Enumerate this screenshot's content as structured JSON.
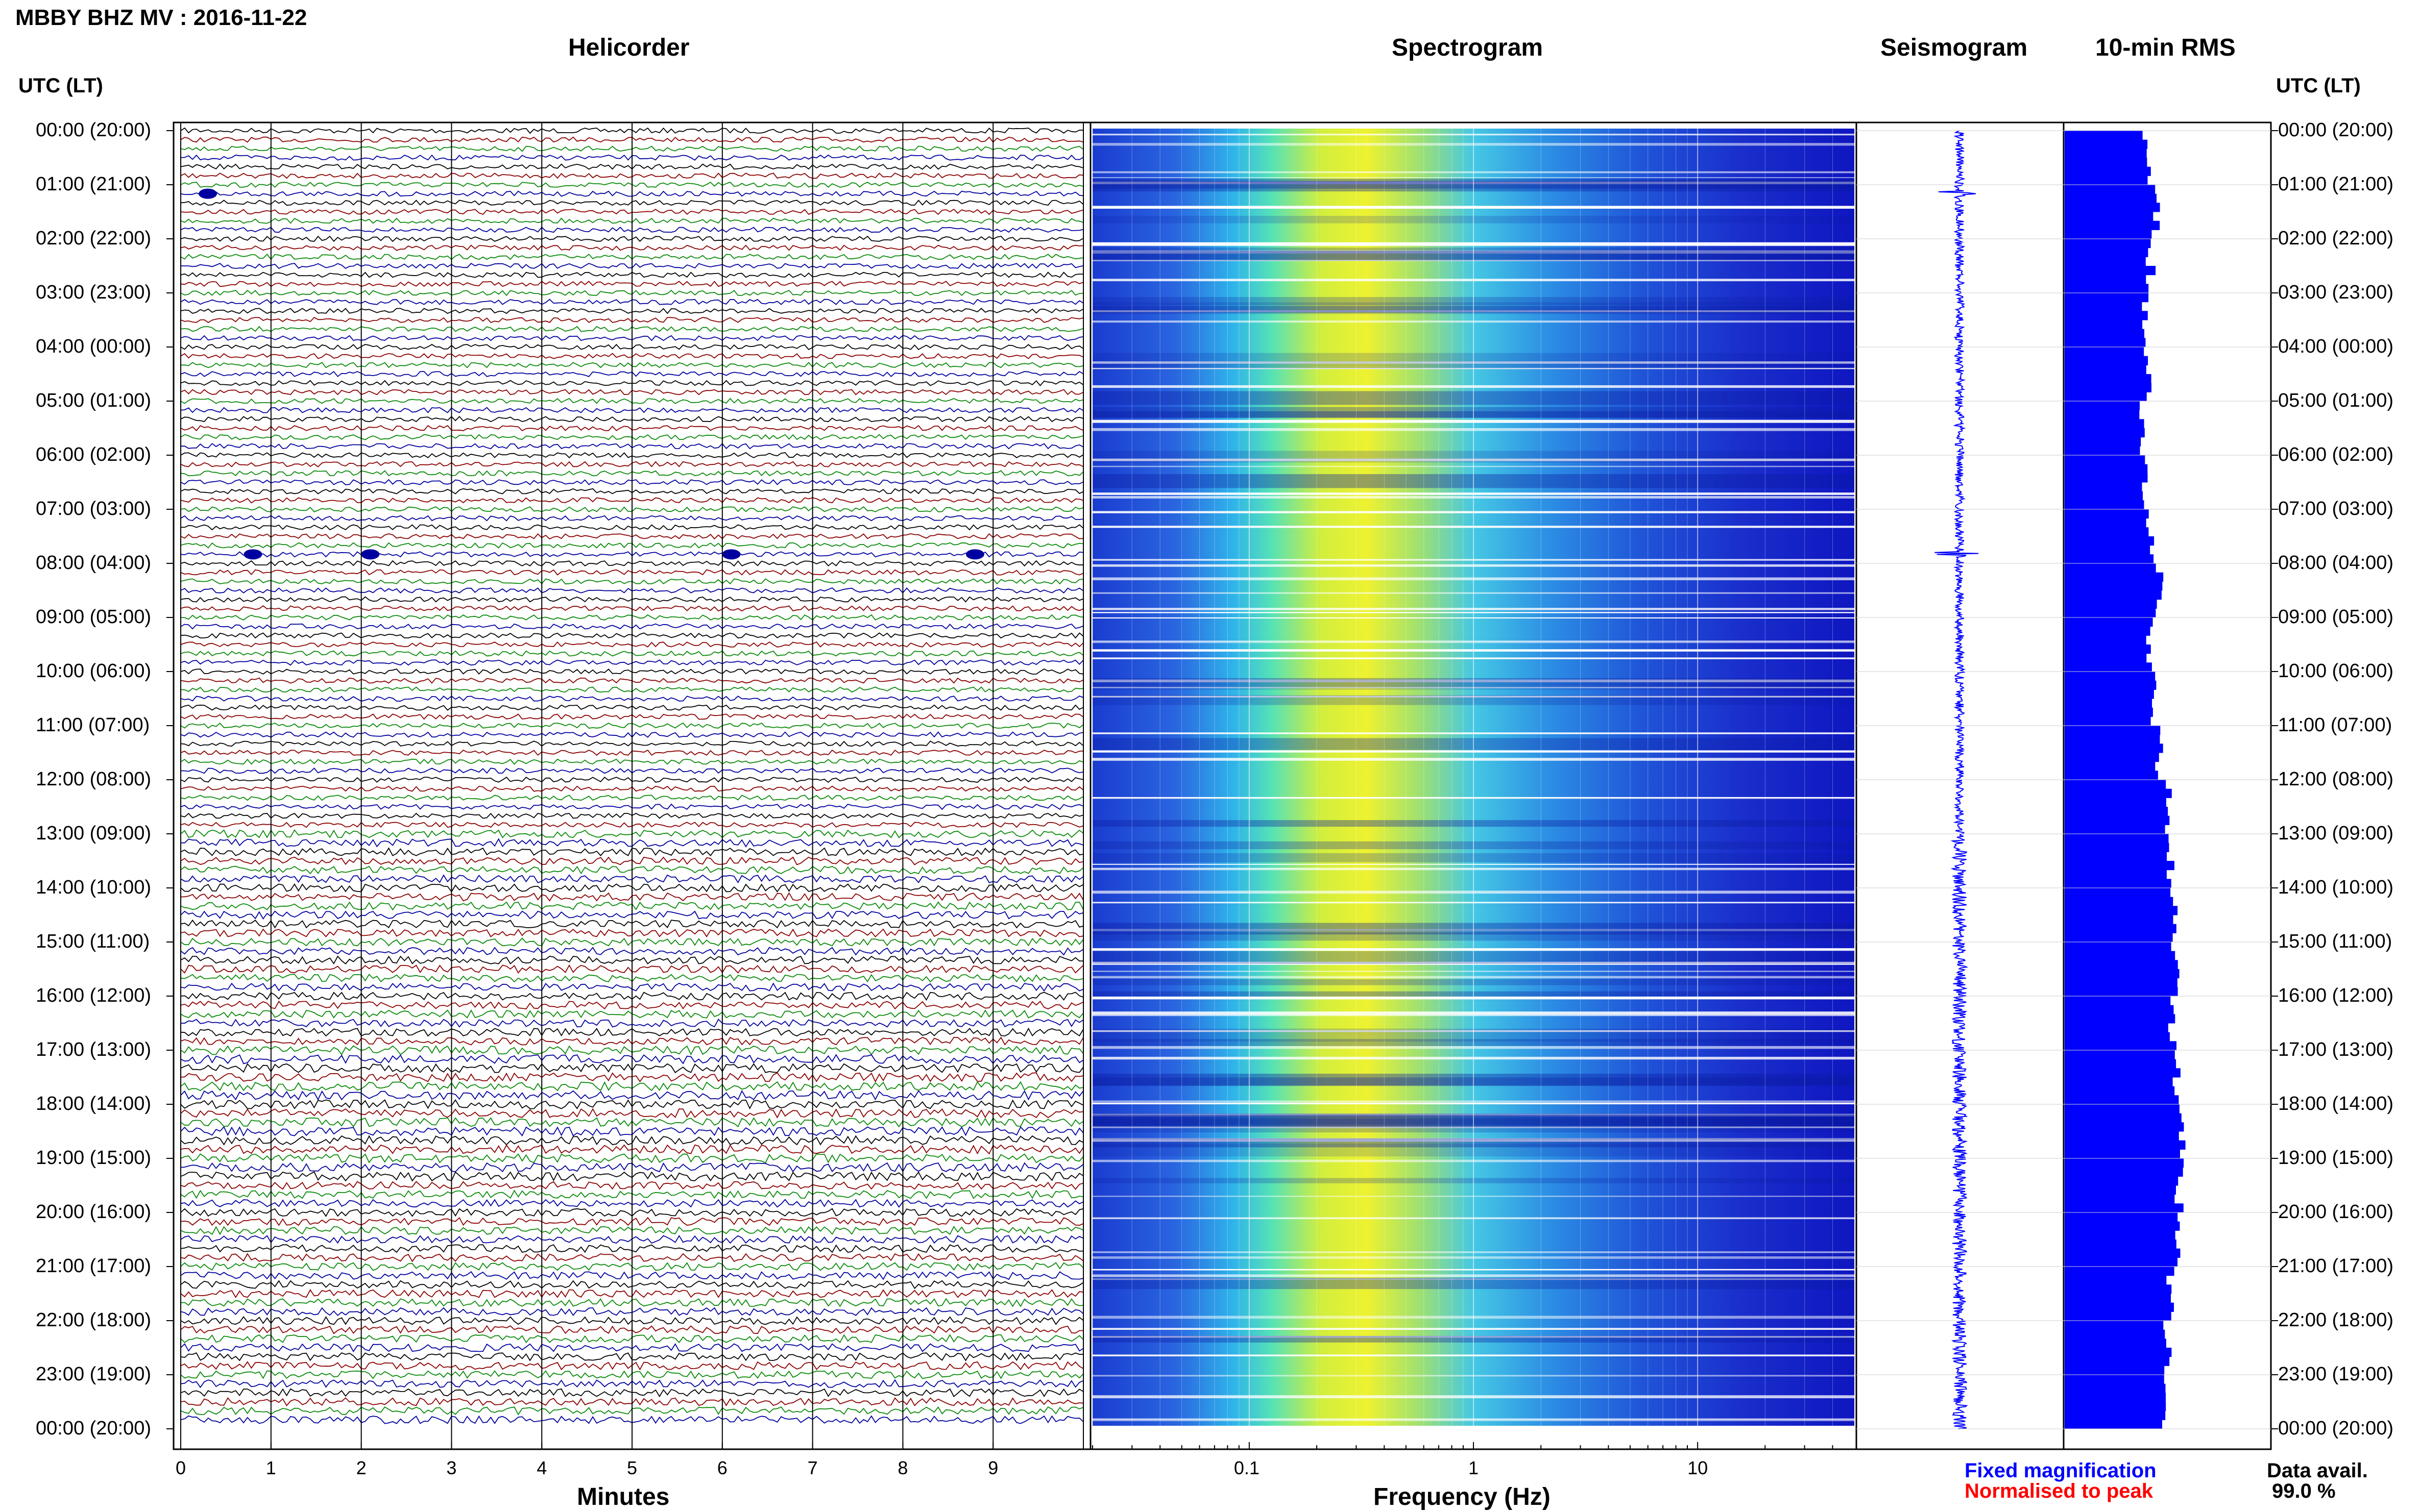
{
  "header": {
    "title": "MBBY BHZ MV : 2016-11-22",
    "tz_left": "UTC (LT)",
    "tz_right": "UTC (LT)"
  },
  "panels": {
    "helicorder": "Helicorder",
    "spectrogram": "Spectrogram",
    "seismogram": "Seismogram",
    "rms": "10-min RMS"
  },
  "axes": {
    "minutes_label": "Minutes",
    "freq_label": "Frequency (Hz)",
    "minute_ticks": [
      "0",
      "1",
      "2",
      "3",
      "4",
      "5",
      "6",
      "7",
      "8",
      "9"
    ],
    "freq_ticks": [
      "0.1",
      "1",
      "10"
    ]
  },
  "time_labels": [
    "00:00 (20:00)",
    "01:00 (21:00)",
    "02:00 (22:00)",
    "03:00 (23:00)",
    "04:00 (00:00)",
    "05:00 (01:00)",
    "06:00 (02:00)",
    "07:00 (03:00)",
    "08:00 (04:00)",
    "09:00 (05:00)",
    "10:00 (06:00)",
    "11:00 (07:00)",
    "12:00 (08:00)",
    "13:00 (09:00)",
    "14:00 (10:00)",
    "15:00 (11:00)",
    "16:00 (12:00)",
    "17:00 (13:00)",
    "18:00 (14:00)",
    "19:00 (15:00)",
    "20:00 (16:00)",
    "21:00 (17:00)",
    "22:00 (18:00)",
    "23:00 (19:00)",
    "00:00 (20:00)"
  ],
  "legend": {
    "fixed": "Fixed magnification",
    "normalised": "Normalised to peak",
    "fixed_color": "#0000ff",
    "normalised_color": "#ff0000"
  },
  "availability": {
    "label": "Data avail.",
    "value": "99.0 %"
  },
  "colors": {
    "trace_cycle": [
      "#000000",
      "#8b0000",
      "#0a8a0a",
      "#0000a0"
    ],
    "rms_bar": "#0000ff",
    "seismogram": "#0000ff"
  },
  "chart_data": [
    {
      "type": "line",
      "title": "Helicorder",
      "xlabel": "Minutes",
      "xlim": [
        0,
        10
      ],
      "rows": 144,
      "row_minutes": 10,
      "events": [
        {
          "utc": "01:10",
          "minute": 0.3
        },
        {
          "utc": "07:50",
          "minute": 0.8
        },
        {
          "utc": "07:50",
          "minute": 2.1
        },
        {
          "utc": "07:50",
          "minute": 6.1
        },
        {
          "utc": "07:50",
          "minute": 8.8
        }
      ]
    },
    {
      "type": "heatmap",
      "title": "Spectrogram",
      "xlabel": "Frequency (Hz)",
      "xscale": "log",
      "xlim": [
        0.02,
        50
      ],
      "peak_band_hz": [
        0.2,
        0.5
      ]
    },
    {
      "type": "line",
      "title": "Seismogram",
      "events_utc": [
        "01:10",
        "07:50"
      ]
    },
    {
      "type": "bar",
      "title": "10-min RMS",
      "orientation": "horizontal",
      "xlim": [
        0,
        1
      ],
      "hourly_relative_values": [
        0.4,
        0.44,
        0.42,
        0.4,
        0.4,
        0.38,
        0.4,
        0.42,
        0.46,
        0.42,
        0.44,
        0.46,
        0.5,
        0.52,
        0.54,
        0.54,
        0.52,
        0.54,
        0.58,
        0.56,
        0.54,
        0.52,
        0.5,
        0.48
      ]
    }
  ]
}
